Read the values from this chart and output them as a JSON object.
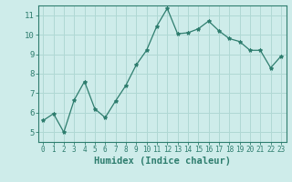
{
  "x": [
    0,
    1,
    2,
    3,
    4,
    5,
    6,
    7,
    8,
    9,
    10,
    11,
    12,
    13,
    14,
    15,
    16,
    17,
    18,
    19,
    20,
    21,
    22,
    23
  ],
  "y": [
    5.6,
    5.95,
    5.0,
    6.65,
    7.6,
    6.2,
    5.75,
    6.6,
    7.4,
    8.45,
    9.2,
    10.45,
    11.35,
    10.05,
    10.1,
    10.3,
    10.7,
    10.2,
    9.8,
    9.65,
    9.2,
    9.2,
    8.3,
    8.9
  ],
  "line_color": "#2e7d6e",
  "marker": "*",
  "marker_size": 3,
  "xlabel": "Humidex (Indice chaleur)",
  "ylim": [
    4.5,
    11.5
  ],
  "xlim": [
    -0.5,
    23.5
  ],
  "yticks": [
    5,
    6,
    7,
    8,
    9,
    10,
    11
  ],
  "xticks": [
    0,
    1,
    2,
    3,
    4,
    5,
    6,
    7,
    8,
    9,
    10,
    11,
    12,
    13,
    14,
    15,
    16,
    17,
    18,
    19,
    20,
    21,
    22,
    23
  ],
  "bg_color": "#ceecea",
  "grid_color": "#b0d8d4",
  "line_width": 0.9,
  "tick_label_color": "#2e7d6e",
  "xlabel_fontsize": 7.5,
  "ytick_fontsize": 6.5,
  "xtick_fontsize": 5.5
}
